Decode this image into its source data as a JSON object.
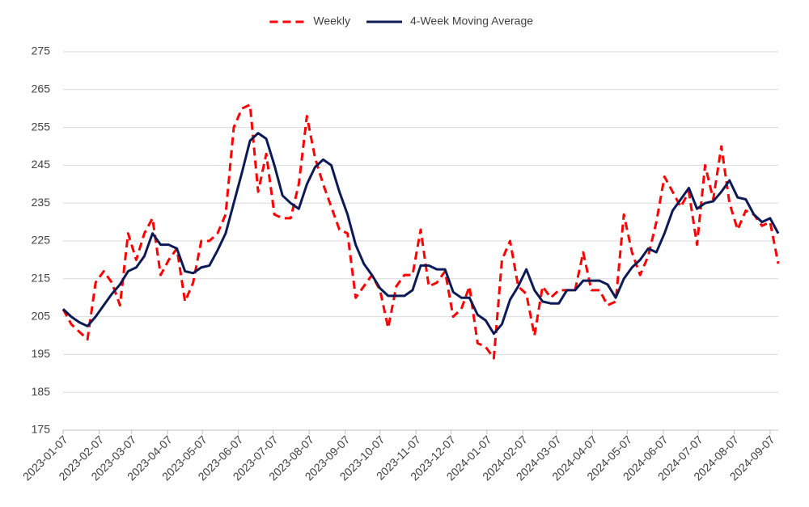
{
  "chart_data": {
    "type": "line",
    "x": [
      "2023-01-07",
      "2023-01-14",
      "2023-01-21",
      "2023-01-28",
      "2023-02-04",
      "2023-02-11",
      "2023-02-18",
      "2023-02-25",
      "2023-03-04",
      "2023-03-11",
      "2023-03-18",
      "2023-03-25",
      "2023-04-01",
      "2023-04-08",
      "2023-04-15",
      "2023-04-22",
      "2023-04-29",
      "2023-05-06",
      "2023-05-13",
      "2023-05-20",
      "2023-05-27",
      "2023-06-03",
      "2023-06-10",
      "2023-06-17",
      "2023-06-24",
      "2023-07-01",
      "2023-07-08",
      "2023-07-15",
      "2023-07-22",
      "2023-07-29",
      "2023-08-05",
      "2023-08-12",
      "2023-08-19",
      "2023-08-26",
      "2023-09-02",
      "2023-09-09",
      "2023-09-16",
      "2023-09-23",
      "2023-09-30",
      "2023-10-07",
      "2023-10-14",
      "2023-10-21",
      "2023-10-28",
      "2023-11-04",
      "2023-11-11",
      "2023-11-18",
      "2023-11-25",
      "2023-12-02",
      "2023-12-09",
      "2023-12-16",
      "2023-12-23",
      "2023-12-30",
      "2024-01-06",
      "2024-01-13",
      "2024-01-20",
      "2024-01-27",
      "2024-02-03",
      "2024-02-10",
      "2024-02-17",
      "2024-02-24",
      "2024-03-02",
      "2024-03-09",
      "2024-03-16",
      "2024-03-23",
      "2024-03-30",
      "2024-04-06",
      "2024-04-13",
      "2024-04-20",
      "2024-04-27",
      "2024-05-04",
      "2024-05-11",
      "2024-05-18",
      "2024-05-25",
      "2024-06-01",
      "2024-06-08",
      "2024-06-15",
      "2024-06-22",
      "2024-06-29",
      "2024-07-06",
      "2024-07-13",
      "2024-07-20",
      "2024-07-27",
      "2024-08-03",
      "2024-08-10",
      "2024-08-17",
      "2024-08-24",
      "2024-08-31",
      "2024-09-07",
      "2024-09-14"
    ],
    "series": [
      {
        "name": "Weekly",
        "color": "#ff0000",
        "dashed": true,
        "values": [
          207,
          203,
          201,
          199,
          214,
          217,
          214,
          208,
          227,
          220,
          227,
          231,
          216,
          220,
          223,
          209,
          214,
          225,
          225,
          227,
          232,
          255,
          260,
          261,
          238,
          248,
          232,
          231,
          231,
          240,
          258,
          247,
          240,
          234,
          228,
          227,
          210,
          213,
          216,
          212,
          202,
          213,
          216,
          216,
          228,
          213,
          214,
          217,
          205,
          207,
          213,
          198,
          197,
          194,
          220,
          225,
          213,
          211,
          200,
          213,
          210,
          212,
          212,
          212,
          222,
          212,
          212,
          208,
          209,
          232,
          222,
          216,
          221,
          230,
          242,
          238,
          234,
          238,
          224,
          245,
          236,
          250,
          235,
          228,
          233,
          232,
          229,
          230,
          219
        ]
      },
      {
        "name": "4-Week Moving Average",
        "color": "#0c1a55",
        "dashed": false,
        "values": [
          207,
          205,
          203.5,
          202.5,
          205,
          208,
          211,
          213.5,
          217,
          218,
          221,
          227,
          224,
          224,
          223,
          217,
          216.5,
          218,
          218.5,
          222.5,
          227,
          235,
          243,
          251.5,
          253.5,
          252,
          245,
          237,
          235,
          233.5,
          240,
          244.5,
          246.5,
          245,
          238,
          232,
          224,
          219,
          216,
          212.5,
          210.5,
          210.5,
          210.5,
          212,
          218.5,
          218.5,
          217.5,
          217.5,
          211.5,
          210,
          210,
          205.5,
          204,
          200.5,
          203,
          209.5,
          213,
          217.5,
          212,
          209,
          208.5,
          208.5,
          212,
          212,
          214.5,
          214.5,
          214.5,
          213.5,
          210,
          215,
          218,
          220,
          223,
          222,
          227,
          233,
          236,
          239,
          233.5,
          235,
          235.5,
          238,
          241,
          236.5,
          236,
          232,
          230,
          231,
          227
        ]
      }
    ],
    "xticks": [
      "2023-01-07",
      "2023-02-07",
      "2023-03-07",
      "2023-04-07",
      "2023-05-07",
      "2023-06-07",
      "2023-07-07",
      "2023-08-07",
      "2023-09-07",
      "2023-10-07",
      "2023-11-07",
      "2023-12-07",
      "2024-01-07",
      "2024-02-07",
      "2024-03-07",
      "2024-04-07",
      "2024-05-07",
      "2024-06-07",
      "2024-07-07",
      "2024-08-07",
      "2024-09-07"
    ],
    "xlim": [
      "2023-01-07",
      "2024-09-14"
    ],
    "ylim": [
      175,
      275
    ],
    "yticks": [
      175,
      185,
      195,
      205,
      215,
      225,
      235,
      245,
      255,
      265,
      275
    ],
    "grid": true,
    "legend": "top"
  }
}
